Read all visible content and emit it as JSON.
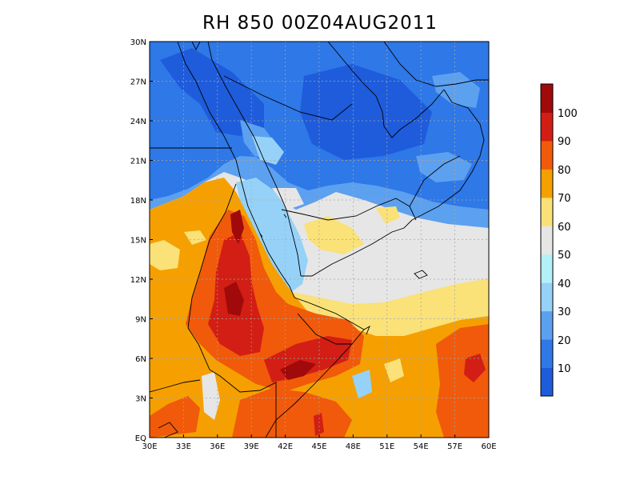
{
  "title": "RH 850 00Z04AUG2011",
  "map": {
    "lat_ticks": [
      "EQ",
      "3N",
      "6N",
      "9N",
      "12N",
      "15N",
      "18N",
      "21N",
      "24N",
      "27N",
      "30N"
    ],
    "lon_ticks": [
      "30E",
      "33E",
      "36E",
      "39E",
      "42E",
      "45E",
      "48E",
      "51E",
      "54E",
      "57E",
      "60E"
    ],
    "lat_range": [
      0,
      30
    ],
    "lon_range": [
      30,
      60
    ]
  },
  "colorbar": {
    "labels": [
      "10",
      "20",
      "30",
      "40",
      "50",
      "60",
      "70",
      "80",
      "90",
      "100"
    ],
    "colors": [
      "#1e5cdc",
      "#2e78e8",
      "#5ca0f0",
      "#96d2f8",
      "#b4f0f8",
      "#e6e6e6",
      "#fae178",
      "#f5a000",
      "#f05a0a",
      "#d21e14",
      "#a00a0a"
    ]
  }
}
